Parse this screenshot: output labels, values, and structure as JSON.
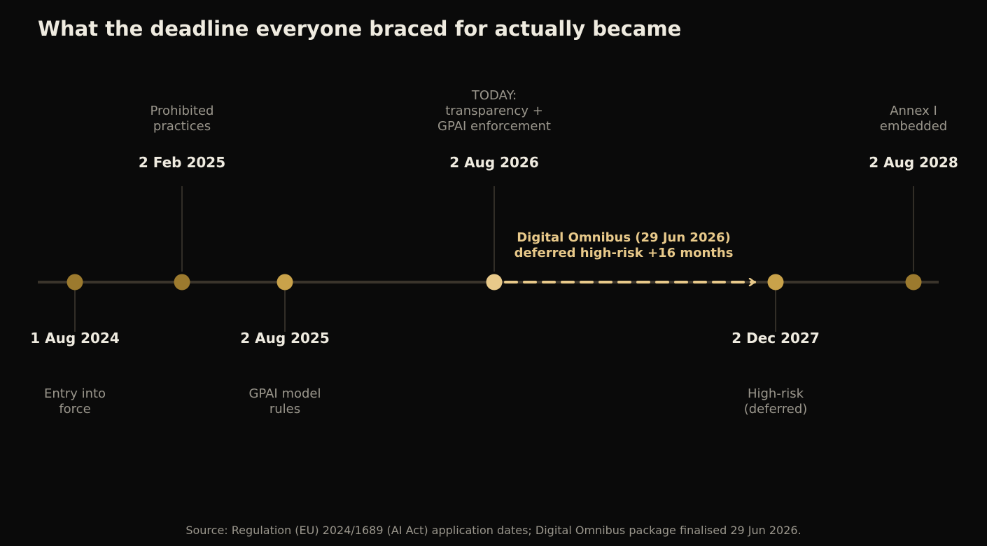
{
  "title": "What the deadline everyone braced for actually became",
  "source": "Source: Regulation (EU) 2024/1689 (AI Act) application dates; Digital Omnibus package finalised 29 Jun 2026.",
  "colors": {
    "background": "#0a0a0a",
    "axis": "#3a342b",
    "milestone_past": "#9c7a2e",
    "milestone_gold": "#c9a24a",
    "milestone_today": "#e8c98a",
    "deferral_arrow": "#e8c98a",
    "text_primary": "#efebe0",
    "text_muted": "#9a968c"
  },
  "milestones": [
    {
      "date": "1 Aug 2024",
      "desc": [
        "Entry into",
        "force"
      ],
      "side": "below",
      "kind": "past"
    },
    {
      "date": "2 Feb 2025",
      "desc": [
        "Prohibited",
        "practices"
      ],
      "side": "above",
      "kind": "past"
    },
    {
      "date": "2 Aug 2025",
      "desc": [
        "GPAI model",
        "rules"
      ],
      "side": "below",
      "kind": "gold"
    },
    {
      "date": "2 Aug 2026",
      "desc": [
        "TODAY:",
        "transparency +",
        "GPAI enforcement"
      ],
      "side": "above",
      "kind": "today"
    },
    {
      "date": "2 Dec 2027",
      "desc": [
        "High-risk",
        "(deferred)"
      ],
      "side": "below",
      "kind": "gold"
    },
    {
      "date": "2 Aug 2028",
      "desc": [
        "Annex I",
        "embedded"
      ],
      "side": "above",
      "kind": "past"
    }
  ],
  "deferral": {
    "from_date": "2 Aug 2026",
    "to_date": "2 Dec 2027",
    "label": [
      "Digital Omnibus (29 Jun 2026)",
      "deferred high-risk +16 months"
    ]
  }
}
